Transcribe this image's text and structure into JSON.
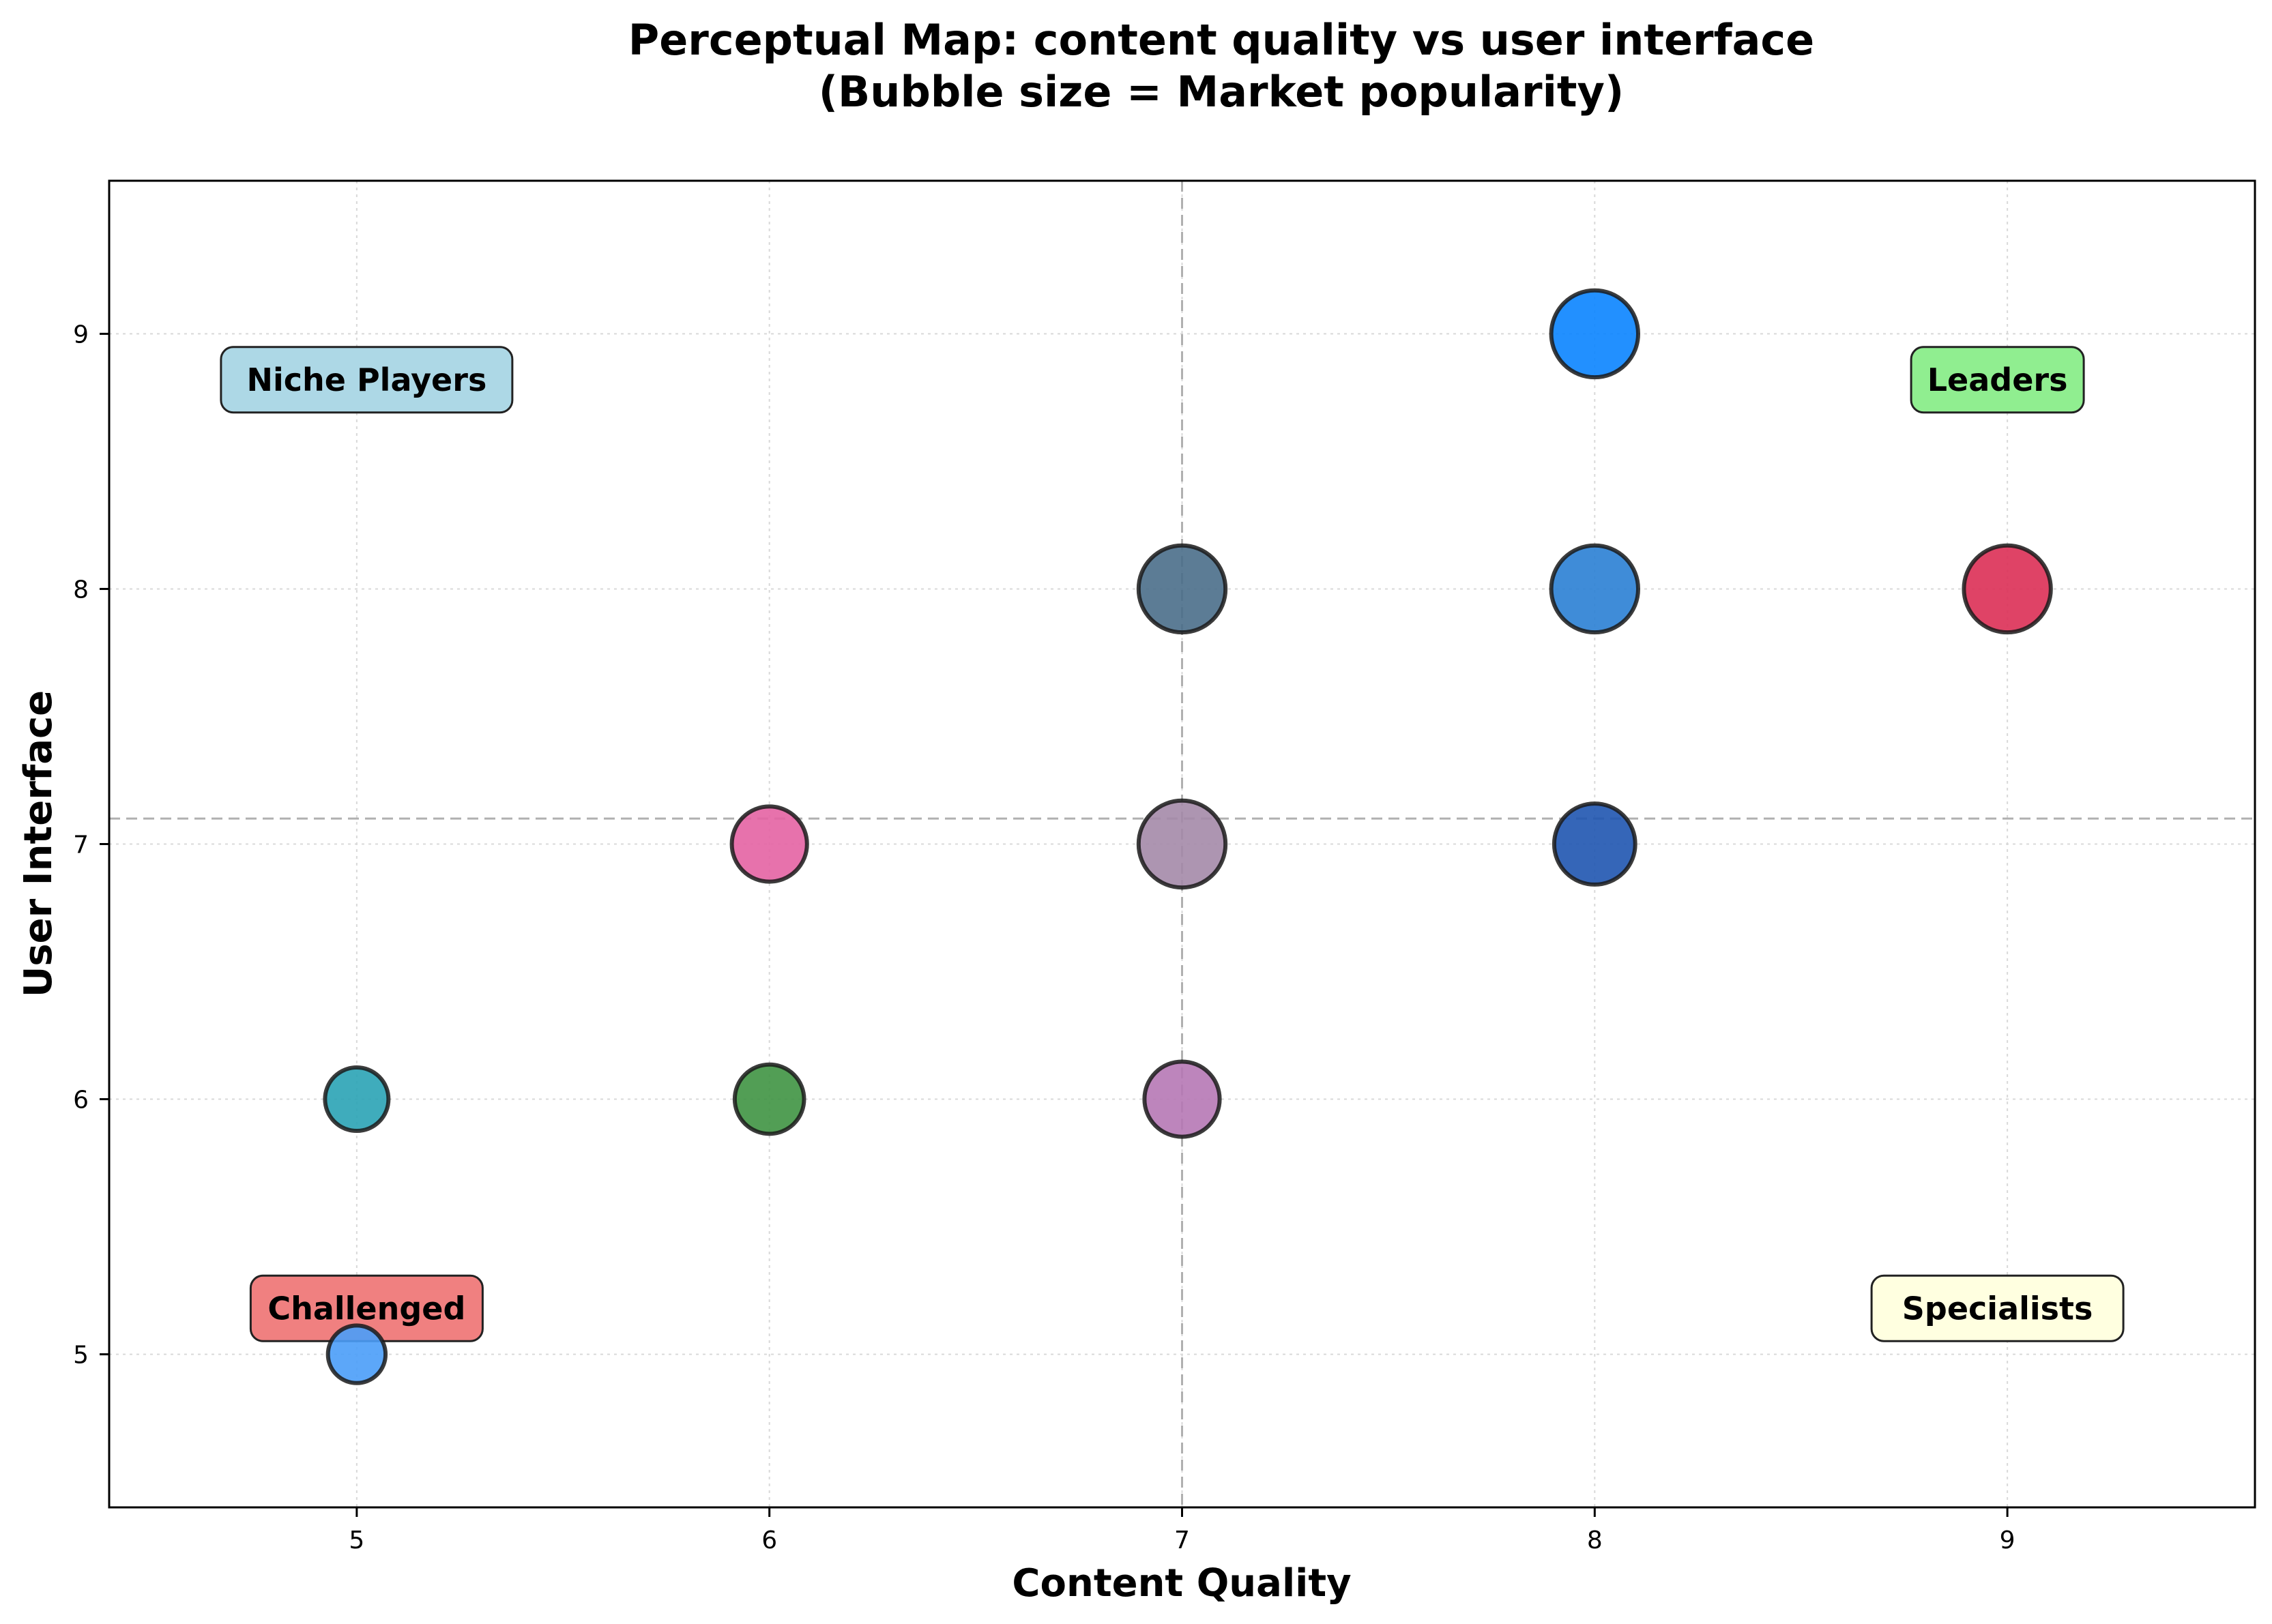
{
  "chart_data": {
    "type": "scatter",
    "title_line1": "Perceptual Map: content quality vs user interface",
    "title_line2": "(Bubble size = Market popularity)",
    "xlabel": "Content Quality",
    "ylabel": "User Interface",
    "xlim": [
      4.4,
      9.6
    ],
    "ylim": [
      4.4,
      9.6
    ],
    "xticks": [
      "5",
      "6",
      "7",
      "8",
      "9"
    ],
    "yticks": [
      "5",
      "6",
      "7",
      "8",
      "9"
    ],
    "grid": true,
    "reference_lines": {
      "x": 7.0,
      "y": 7.1
    },
    "quadrants": {
      "niche": {
        "label": "Niche Players",
        "color": "#add8e6"
      },
      "leaders": {
        "label": "Leaders",
        "color": "#90ee90"
      },
      "challenged": {
        "label": "Challenged",
        "color": "#f08080"
      },
      "specialists": {
        "label": "Specialists",
        "color": "#ffffe0"
      }
    },
    "points": [
      {
        "x": 8,
        "y": 9,
        "size": 9,
        "color": "#0a84ff"
      },
      {
        "x": 7,
        "y": 8,
        "size": 9,
        "color": "#4a6e8a"
      },
      {
        "x": 8,
        "y": 8,
        "size": 9,
        "color": "#2a7fd4"
      },
      {
        "x": 9,
        "y": 8,
        "size": 9,
        "color": "#dc2f55"
      },
      {
        "x": 6,
        "y": 7,
        "size": 7,
        "color": "#e463a3"
      },
      {
        "x": 7,
        "y": 7,
        "size": 9,
        "color": "#a48aa8"
      },
      {
        "x": 8,
        "y": 7,
        "size": 8,
        "color": "#1f55b0"
      },
      {
        "x": 5,
        "y": 6,
        "size": 5,
        "color": "#2aa3b5"
      },
      {
        "x": 6,
        "y": 6,
        "size": 6,
        "color": "#3f9442"
      },
      {
        "x": 7,
        "y": 6,
        "size": 7,
        "color": "#b678b5"
      },
      {
        "x": 5,
        "y": 5,
        "size": 4,
        "color": "#4a9df8"
      }
    ]
  }
}
